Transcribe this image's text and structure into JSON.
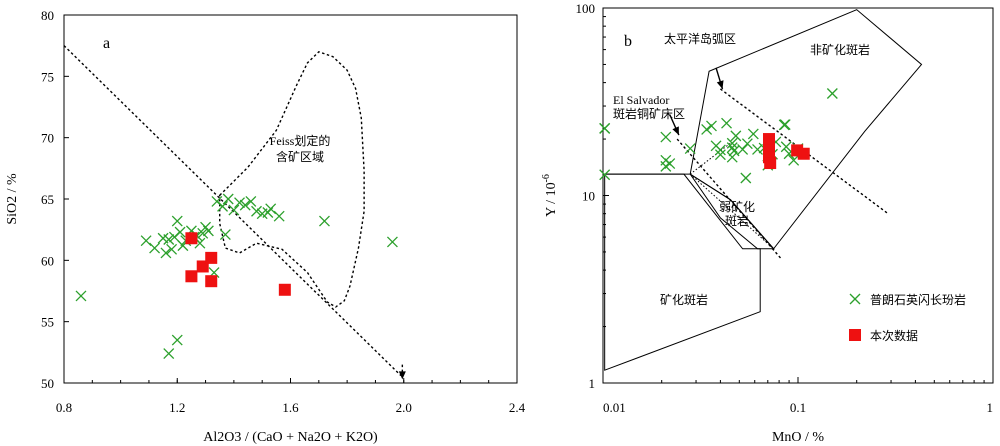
{
  "chart_data": [
    {
      "panel_label": "a",
      "type": "scatter",
      "xlabel": "Al2O3 / (CaO + Na2O + K2O)",
      "ylabel": "SiO2 / %",
      "xlim": [
        0.8,
        2.4
      ],
      "ylim": [
        50,
        80
      ],
      "xticks": [
        "0.8",
        "1.2",
        "1.6",
        "2.0",
        "2.4"
      ],
      "yticks": [
        "50",
        "55",
        "60",
        "65",
        "70",
        "75",
        "80"
      ],
      "grid": false,
      "region_label": "Feiss划定的\n含矿区域",
      "region_outline": [
        [
          1.35,
          65.3
        ],
        [
          1.45,
          67.6
        ],
        [
          1.55,
          70.6
        ],
        [
          1.62,
          74.2
        ],
        [
          1.66,
          76.1
        ],
        [
          1.7,
          77.0
        ],
        [
          1.75,
          76.6
        ],
        [
          1.8,
          75.5
        ],
        [
          1.83,
          74.0
        ],
        [
          1.85,
          71.6
        ],
        [
          1.86,
          67.3
        ],
        [
          1.86,
          64.0
        ],
        [
          1.84,
          61.0
        ],
        [
          1.81,
          57.9
        ],
        [
          1.79,
          56.7
        ],
        [
          1.76,
          56.2
        ],
        [
          1.73,
          56.6
        ],
        [
          1.66,
          59.0
        ],
        [
          1.57,
          60.9
        ],
        [
          1.48,
          61.4
        ],
        [
          1.42,
          60.6
        ],
        [
          1.37,
          61.0
        ],
        [
          1.35,
          63.0
        ],
        [
          1.35,
          65.3
        ]
      ],
      "trend_line": [
        [
          0.8,
          77.5
        ],
        [
          1.99,
          50.6
        ]
      ],
      "trend_end_arrow": [
        [
          1.995,
          51.5
        ],
        [
          1.995,
          50.3
        ]
      ],
      "series": [
        {
          "name": "普朗石英闪长玢岩",
          "marker": "x",
          "color": "#2ca02c",
          "x": [
            0.86,
            1.09,
            1.12,
            1.15,
            1.17,
            1.19,
            1.21,
            1.22,
            1.25,
            1.27,
            1.29,
            1.3,
            1.16,
            1.18,
            1.2,
            1.23,
            1.26,
            1.28,
            1.31,
            1.34,
            1.36,
            1.38,
            1.4,
            1.42,
            1.44,
            1.46,
            1.48,
            1.5,
            1.52,
            1.53,
            1.56,
            1.37,
            1.33,
            1.72,
            1.96,
            1.2,
            1.17
          ],
          "y": [
            57.1,
            61.6,
            61.0,
            61.8,
            61.7,
            61.9,
            62.3,
            61.2,
            62.4,
            62.0,
            62.2,
            62.7,
            60.6,
            60.9,
            63.2,
            61.6,
            61.9,
            61.4,
            62.4,
            64.8,
            64.4,
            65.0,
            64.1,
            64.7,
            64.5,
            64.8,
            64.0,
            63.8,
            63.9,
            64.2,
            63.6,
            62.1,
            59.0,
            63.2,
            61.5,
            53.5,
            52.4
          ]
        },
        {
          "name": "本次数据",
          "marker": "square",
          "color": "#ee1111",
          "x": [
            1.25,
            1.25,
            1.29,
            1.32,
            1.32,
            1.58
          ],
          "y": [
            61.8,
            58.7,
            59.5,
            60.2,
            58.3,
            57.6
          ]
        }
      ]
    },
    {
      "panel_label": "b",
      "type": "scatter",
      "xlabel": "MnO / %",
      "ylabel": "Y / 10",
      "ylabel_exp": "-6",
      "xscale": "log",
      "yscale": "log",
      "xlim": [
        0.01,
        1
      ],
      "ylim": [
        1,
        100
      ],
      "xticks": [
        "0.01",
        "0.1",
        "1"
      ],
      "yticks": [
        "1",
        "10",
        "100"
      ],
      "grid": false,
      "region_labels": {
        "barren": "非矿化斑岩",
        "weak": "弱矿化\n斑岩",
        "mineralized": "矿化斑岩",
        "pacific": "太平洋岛弧区",
        "elsalvador": "El Salvador\n斑岩铜矿床区"
      },
      "regions": {
        "barren": [
          [
            0.028,
            13.0
          ],
          [
            0.035,
            46
          ],
          [
            0.2,
            98
          ],
          [
            0.43,
            50
          ],
          [
            0.22,
            22
          ],
          [
            0.075,
            5.2
          ],
          [
            0.045,
            9.5
          ],
          [
            0.028,
            13.0
          ]
        ],
        "weak_mineralized": [
          [
            0.0102,
            13.0
          ],
          [
            0.028,
            13.0
          ],
          [
            0.045,
            9.5
          ],
          [
            0.075,
            5.2
          ],
          [
            0.062,
            5.2
          ],
          [
            0.04,
            7.6
          ],
          [
            0.028,
            13.0
          ]
        ],
        "mineralized": [
          [
            0.0102,
            1.17
          ],
          [
            0.0102,
            13.0
          ],
          [
            0.026,
            13.0
          ],
          [
            0.052,
            5.2
          ],
          [
            0.064,
            5.2
          ],
          [
            0.064,
            2.4
          ],
          [
            0.0102,
            1.17
          ]
        ]
      },
      "dashed_lines": {
        "pacific": [
          [
            0.04,
            37
          ],
          [
            0.29,
            8.0
          ]
        ],
        "elsalvador": [
          [
            0.024,
            20
          ],
          [
            0.082,
            4.6
          ]
        ]
      },
      "dotted_lines": [
        [
          [
            0.028,
            13.0
          ],
          [
            0.075,
            5.2
          ]
        ],
        [
          [
            0.028,
            13.0
          ],
          [
            0.045,
            19
          ]
        ],
        [
          [
            0.045,
            9.5
          ],
          [
            0.075,
            5.2
          ]
        ]
      ],
      "arrows": {
        "pacific": [
          [
            0.038,
            48
          ],
          [
            0.041,
            37
          ]
        ],
        "elsalvador": [
          [
            0.022,
            27
          ],
          [
            0.0245,
            21
          ]
        ]
      },
      "series": [
        {
          "name": "普朗石英闪长玢岩",
          "marker": "x",
          "color": "#2ca02c",
          "x": [
            0.0102,
            0.0102,
            0.0102,
            0.021,
            0.021,
            0.021,
            0.022,
            0.028,
            0.034,
            0.036,
            0.038,
            0.04,
            0.04,
            0.043,
            0.046,
            0.046,
            0.046,
            0.047,
            0.048,
            0.052,
            0.054,
            0.055,
            0.059,
            0.062,
            0.067,
            0.07,
            0.071,
            0.071,
            0.074,
            0.077,
            0.085,
            0.086,
            0.087,
            0.09,
            0.095,
            0.15,
            0.1
          ],
          "y": [
            22.8,
            22.8,
            12.9,
            20.5,
            15.4,
            14.3,
            14.8,
            17.8,
            22.5,
            23.5,
            18.4,
            16.5,
            17.5,
            24.3,
            18.0,
            16.0,
            19.0,
            17.3,
            20.8,
            17.6,
            12.4,
            18.9,
            21.3,
            17.6,
            17.9,
            14.5,
            16.8,
            18.3,
            16.6,
            19.3,
            23.8,
            23.9,
            18.2,
            16.7,
            15.4,
            35.0,
            17.8
          ]
        },
        {
          "name": "本次数据",
          "marker": "square",
          "color": "#ee1111",
          "x": [
            0.071,
            0.071,
            0.071,
            0.072,
            0.099,
            0.107
          ],
          "y": [
            20.0,
            17.3,
            16.0,
            14.9,
            17.4,
            16.7
          ]
        }
      ]
    }
  ]
}
